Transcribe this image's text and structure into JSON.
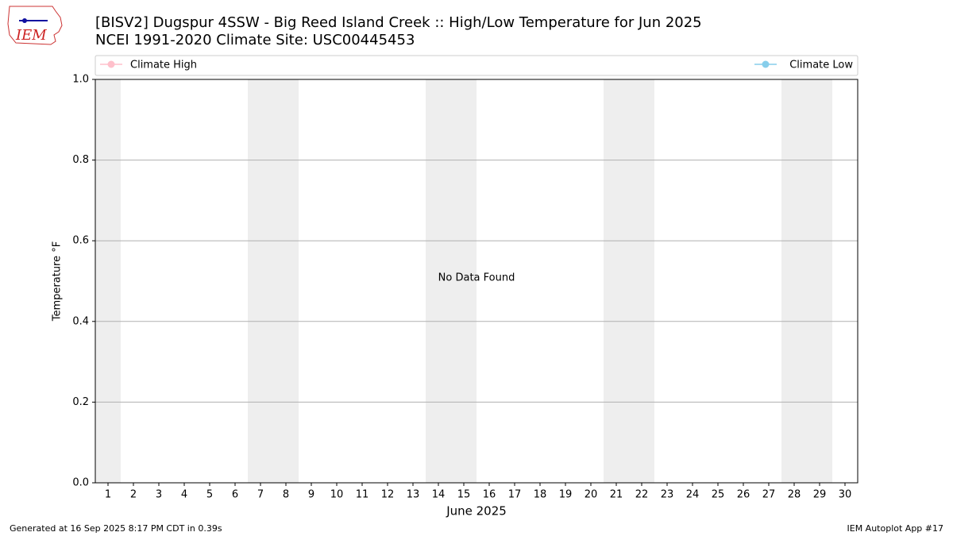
{
  "chart_data": {
    "type": "line",
    "title": "[BISV2] Dugspur 4SSW - Big Reed Island Creek :: High/Low Temperature for Jun 2025",
    "subtitle": "NCEI 1991-2020 Climate Site: USC00445453",
    "ylabel": "Temperature °F",
    "xlabel": "June 2025",
    "annotation": "No Data Found",
    "x": [
      1,
      2,
      3,
      4,
      5,
      6,
      7,
      8,
      9,
      10,
      11,
      12,
      13,
      14,
      15,
      16,
      17,
      18,
      19,
      20,
      21,
      22,
      23,
      24,
      25,
      26,
      27,
      28,
      29,
      30
    ],
    "xlim": [
      0.5,
      30.5
    ],
    "xticks": [
      1,
      2,
      3,
      4,
      5,
      6,
      7,
      8,
      9,
      10,
      11,
      12,
      13,
      14,
      15,
      16,
      17,
      18,
      19,
      20,
      21,
      22,
      23,
      24,
      25,
      26,
      27,
      28,
      29,
      30
    ],
    "ylim": [
      0,
      1
    ],
    "yticks": [
      {
        "value": 0,
        "label": "0.0"
      },
      0.2,
      0.4,
      0.6,
      0.8,
      {
        "value": 1,
        "label": "1.0"
      }
    ],
    "grid": true,
    "shaded_spans": [
      [
        0.5,
        1.5
      ],
      [
        6.5,
        8.5
      ],
      [
        13.5,
        15.5
      ],
      [
        20.5,
        22.5
      ],
      [
        27.5,
        29.5
      ]
    ],
    "shade_color": "#eeeeee",
    "series": [
      {
        "name": "Climate High",
        "color": "#ffc0cb",
        "values": [
          null,
          null,
          null,
          null,
          null,
          null,
          null,
          null,
          null,
          null,
          null,
          null,
          null,
          null,
          null,
          null,
          null,
          null,
          null,
          null,
          null,
          null,
          null,
          null,
          null,
          null,
          null,
          null,
          null,
          null
        ]
      },
      {
        "name": "Climate Low",
        "color": "#87ceeb",
        "values": [
          null,
          null,
          null,
          null,
          null,
          null,
          null,
          null,
          null,
          null,
          null,
          null,
          null,
          null,
          null,
          null,
          null,
          null,
          null,
          null,
          null,
          null,
          null,
          null,
          null,
          null,
          null,
          null,
          null,
          null
        ]
      }
    ]
  },
  "logo": "IEM",
  "footer": {
    "left": "Generated at 16 Sep 2025 8:17 PM CDT in 0.39s",
    "right": "IEM Autoplot App #17"
  }
}
